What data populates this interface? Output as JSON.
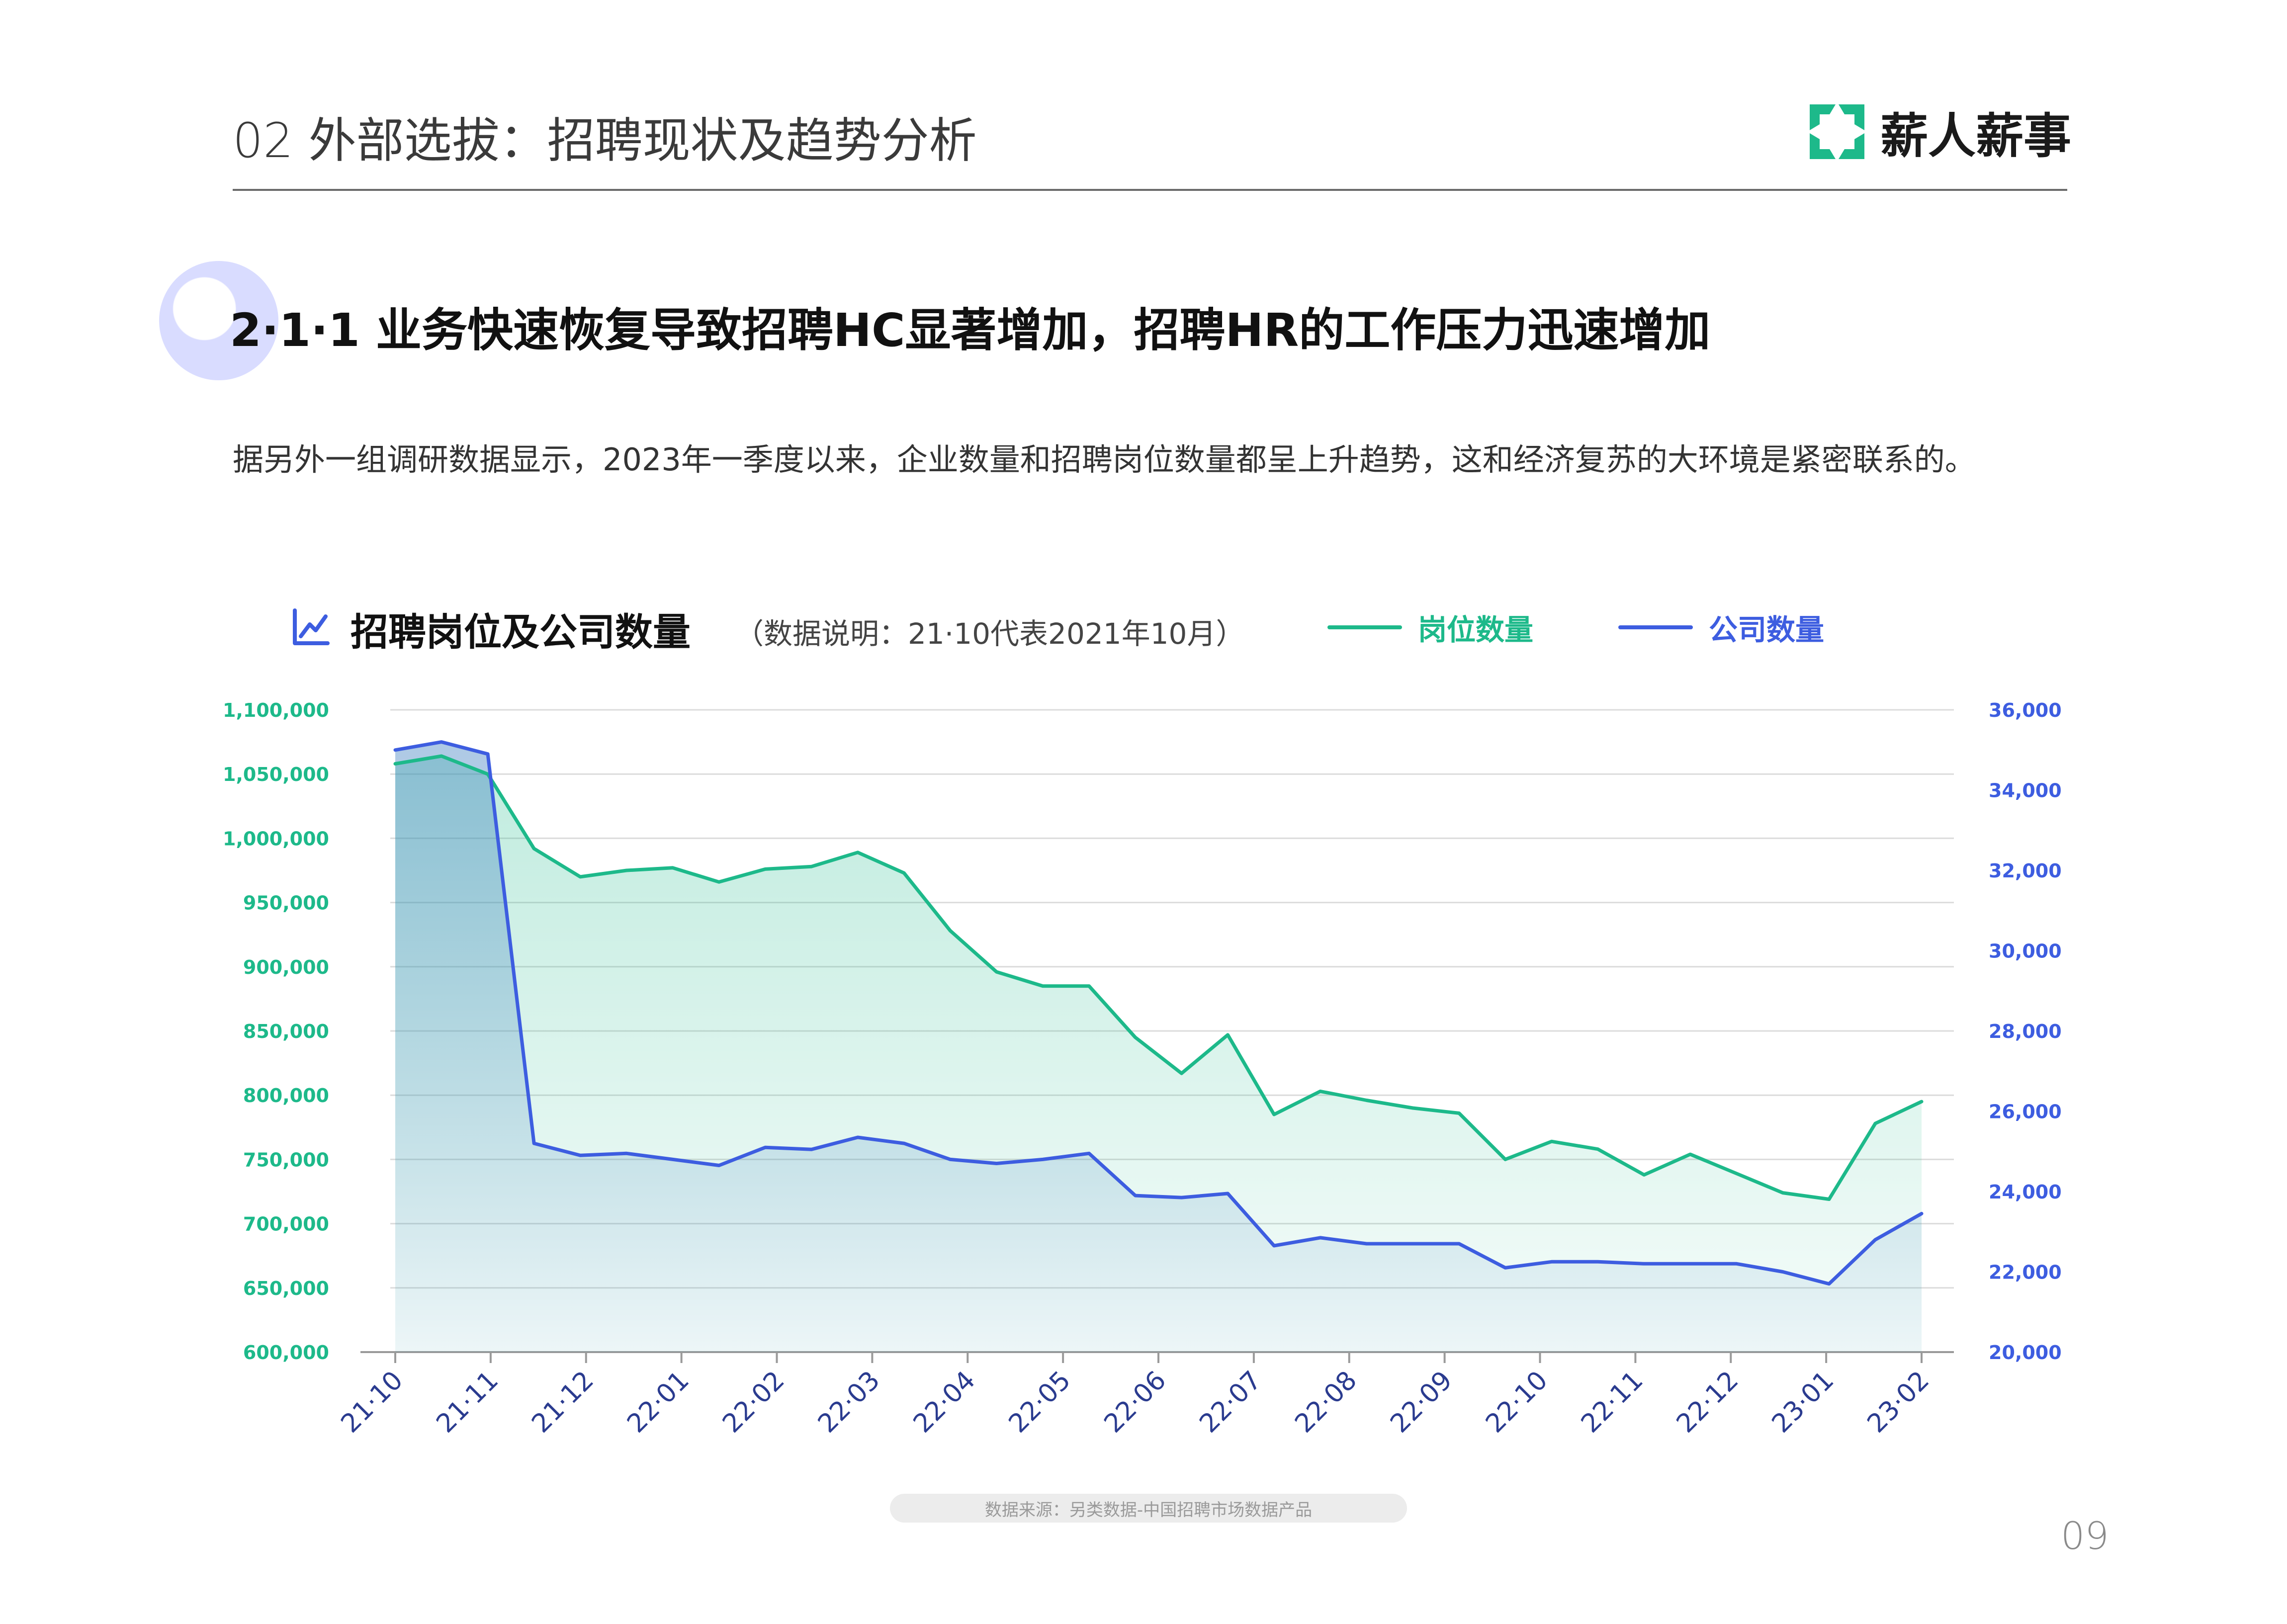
{
  "header": {
    "title": "02 外部选拔：招聘现状及趋势分析",
    "logo_text": "薪人薪事",
    "brand_color": "#1db98a"
  },
  "section": {
    "title": "2·1·1 业务快速恢复导致招聘HC显著增加，招聘HR的工作压力迅速增加",
    "body": "据另外一组调研数据显示，2023年一季度以来，企业数量和招聘岗位数量都呈上升趋势，这和经济复苏的大环境是紧密联系的。"
  },
  "chart": {
    "icon": "line-chart-icon",
    "title": "招聘岗位及公司数量",
    "note": "（数据说明：21·10代表2021年10月）",
    "source": "数据来源：另类数据-中国招聘市场数据产品"
  },
  "footer": {
    "page_number": "09"
  },
  "chart_data": {
    "type": "line",
    "title": "招聘岗位及公司数量",
    "x_tick_labels": [
      "21·10",
      "21·11",
      "21·12",
      "22·01",
      "22·02",
      "22·03",
      "22·04",
      "22·05",
      "22·06",
      "22·07",
      "22·08",
      "22·09",
      "22·10",
      "22·11",
      "22·12",
      "23·01",
      "23·02"
    ],
    "left_axis": {
      "ylim": [
        600000,
        1100000
      ],
      "ticks": [
        600000,
        650000,
        700000,
        750000,
        800000,
        850000,
        900000,
        950000,
        1000000,
        1050000,
        1100000
      ],
      "tick_labels": [
        "600,000",
        "650,000",
        "700,000",
        "750,000",
        "800,000",
        "850,000",
        "900,000",
        "950,000",
        "1,000,000",
        "1,050,000",
        "1,100,000"
      ],
      "color": "#1db98a"
    },
    "right_axis": {
      "ylim": [
        20000,
        36000
      ],
      "ticks": [
        20000,
        22000,
        24000,
        26000,
        28000,
        30000,
        32000,
        34000,
        36000
      ],
      "tick_labels": [
        "20,000",
        "22,000",
        "24,000",
        "26,000",
        "28,000",
        "30,000",
        "32,000",
        "34,000",
        "36,000"
      ],
      "color": "#3d5de0"
    },
    "grid": true,
    "legend_position": "top",
    "series": [
      {
        "name": "岗位数量",
        "axis": "left",
        "color": "#1db98a",
        "values": [
          1058000,
          1064000,
          1050000,
          992000,
          970000,
          975000,
          977000,
          966000,
          976000,
          978000,
          989000,
          973000,
          928000,
          896000,
          885000,
          885000,
          845000,
          817000,
          847000,
          785000,
          803000,
          796000,
          790000,
          786000,
          750000,
          764000,
          758000,
          738000,
          754000,
          739000,
          724000,
          719000,
          778000,
          795000
        ]
      },
      {
        "name": "公司数量",
        "axis": "right",
        "color": "#3d5de0",
        "values": [
          35000,
          35200,
          34900,
          25200,
          24900,
          24950,
          24800,
          24650,
          25100,
          25050,
          25350,
          25200,
          24800,
          24700,
          24800,
          24950,
          23900,
          23850,
          23950,
          22650,
          22850,
          22700,
          22700,
          22700,
          22100,
          22250,
          22250,
          22200,
          22200,
          22200,
          22000,
          21700,
          22800,
          23450
        ]
      }
    ]
  }
}
